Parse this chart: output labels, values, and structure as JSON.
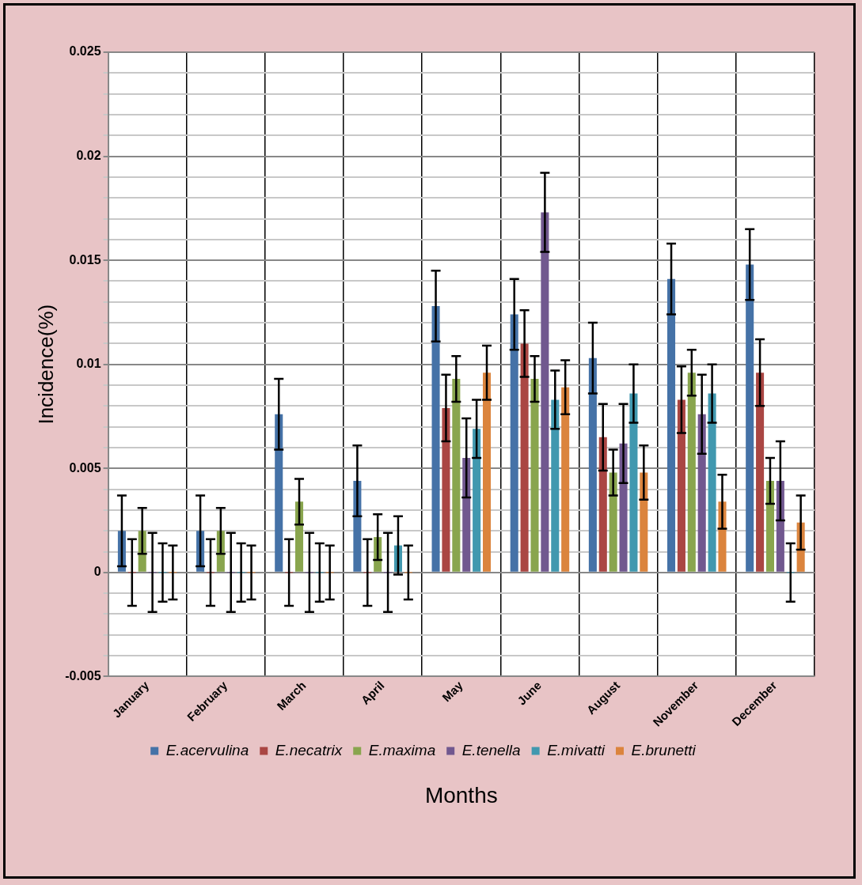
{
  "chart_data": {
    "type": "bar",
    "xlabel": "Months",
    "ylabel": "Incidence(%)",
    "categories": [
      "January",
      "February",
      "March",
      "April",
      "May",
      "June",
      "August",
      "November",
      "December"
    ],
    "series": [
      {
        "name": "E.acervulina",
        "color": "#4572a7",
        "values": [
          0.002,
          0.002,
          0.0076,
          0.0044,
          0.0128,
          0.0124,
          0.0103,
          0.0141,
          0.0148
        ],
        "errors": [
          0.0017,
          0.0017,
          0.0017,
          0.0017,
          0.0017,
          0.0017,
          0.0017,
          0.0017,
          0.0017
        ]
      },
      {
        "name": "E.necatrix",
        "color": "#aa4643",
        "values": [
          0,
          0,
          0,
          0,
          0.0079,
          0.011,
          0.0065,
          0.0083,
          0.0096
        ],
        "errors": [
          0.0016,
          0.0016,
          0.0016,
          0.0016,
          0.0016,
          0.0016,
          0.0016,
          0.0016,
          0.0016
        ]
      },
      {
        "name": "E.maxima",
        "color": "#89a54e",
        "values": [
          0.002,
          0.002,
          0.0034,
          0.0017,
          0.0093,
          0.0093,
          0.0048,
          0.0096,
          0.0044
        ],
        "errors": [
          0.0011,
          0.0011,
          0.0011,
          0.0011,
          0.0011,
          0.0011,
          0.0011,
          0.0011,
          0.0011
        ]
      },
      {
        "name": "E.tenella",
        "color": "#71588f",
        "values": [
          0,
          0,
          0,
          0,
          0.0055,
          0.0173,
          0.0062,
          0.0076,
          0.0044
        ],
        "errors": [
          0.0019,
          0.0019,
          0.0019,
          0.0019,
          0.0019,
          0.0019,
          0.0019,
          0.0019,
          0.0019
        ]
      },
      {
        "name": "E.mivatti",
        "color": "#4198af",
        "values": [
          0,
          0,
          0,
          0.0013,
          0.0069,
          0.0083,
          0.0086,
          0.0086,
          0
        ],
        "errors": [
          0.0014,
          0.0014,
          0.0014,
          0.0014,
          0.0014,
          0.0014,
          0.0014,
          0.0014,
          0.0014
        ]
      },
      {
        "name": "E.brunetti",
        "color": "#db843d",
        "values": [
          0,
          0,
          0,
          0,
          0.0096,
          0.0089,
          0.0048,
          0.0034,
          0.0024
        ],
        "errors": [
          0.0013,
          0.0013,
          0.0013,
          0.0013,
          0.0013,
          0.0013,
          0.0013,
          0.0013,
          0.0013
        ]
      }
    ],
    "ylim": [
      -0.005,
      0.025
    ],
    "yticks": [
      {
        "value": -0.005,
        "label": "-0.005"
      },
      {
        "value": -0.004,
        "label": null
      },
      {
        "value": -0.003,
        "label": null
      },
      {
        "value": -0.002,
        "label": null
      },
      {
        "value": -0.001,
        "label": null
      },
      {
        "value": 0,
        "label": "0"
      },
      {
        "value": 0.001,
        "label": null
      },
      {
        "value": 0.002,
        "label": null
      },
      {
        "value": 0.003,
        "label": null
      },
      {
        "value": 0.004,
        "label": null
      },
      {
        "value": 0.005,
        "label": "0.005"
      },
      {
        "value": 0.006,
        "label": null
      },
      {
        "value": 0.007,
        "label": null
      },
      {
        "value": 0.008,
        "label": null
      },
      {
        "value": 0.009,
        "label": null
      },
      {
        "value": 0.01,
        "label": "0.01"
      },
      {
        "value": 0.011,
        "label": null
      },
      {
        "value": 0.012,
        "label": null
      },
      {
        "value": 0.013,
        "label": null
      },
      {
        "value": 0.014,
        "label": null
      },
      {
        "value": 0.015,
        "label": "0.015"
      },
      {
        "value": 0.016,
        "label": null
      },
      {
        "value": 0.017,
        "label": null
      },
      {
        "value": 0.018,
        "label": null
      },
      {
        "value": 0.019,
        "label": null
      },
      {
        "value": 0.02,
        "label": "0.02"
      },
      {
        "value": 0.021,
        "label": null
      },
      {
        "value": 0.022,
        "label": null
      },
      {
        "value": 0.023,
        "label": null
      },
      {
        "value": 0.024,
        "label": null
      },
      {
        "value": 0.025,
        "label": "0.025"
      }
    ],
    "grid": true,
    "legend": "bottom"
  }
}
